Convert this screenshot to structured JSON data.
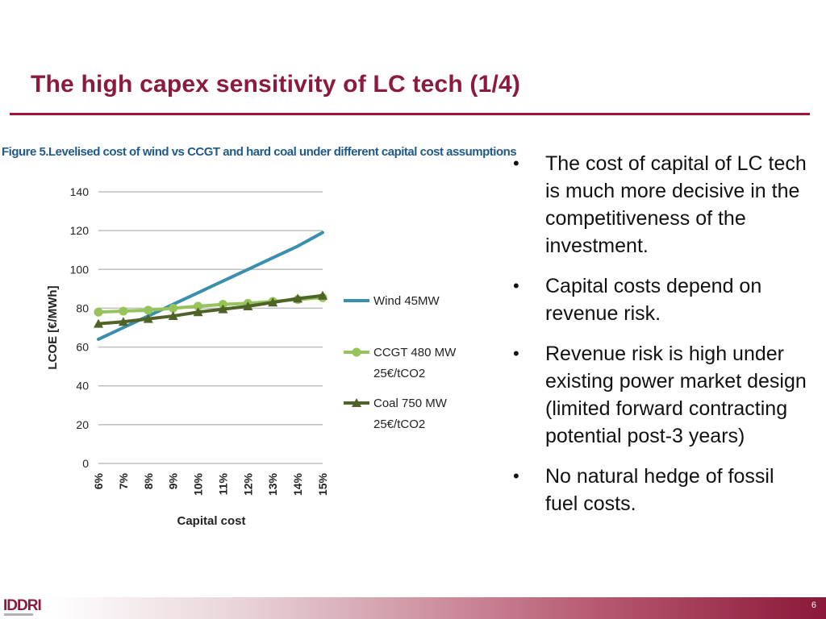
{
  "slide": {
    "title": "The high capex sensitivity of LC tech (1/4)",
    "page_number": "6",
    "logo_text": "IDDRI"
  },
  "figure": {
    "caption": "Figure 5.Levelised cost of wind vs CCGT and hard coal under different capital cost assumptions"
  },
  "bullets": [
    "The cost of capital of LC tech is much more decisive in the competitiveness of the investment.",
    "Capital costs depend on revenue risk.",
    "Revenue risk is high under existing power market design (limited forward contracting potential post-3 years)",
    "No natural hedge of fossil fuel costs."
  ],
  "colors": {
    "title": "#8b1a3c",
    "rule": "#a3123a",
    "caption": "#1f5a8a",
    "wind": "#3a8fb0",
    "ccgt": "#96c35a",
    "coal": "#4f6228",
    "grid": "#bfbfbf"
  },
  "chart_data": {
    "type": "line",
    "title": "",
    "xlabel": "Capital cost",
    "ylabel": "LCOE [€/MWh]",
    "ylim": [
      0,
      140
    ],
    "yticks": [
      "0",
      "20",
      "40",
      "60",
      "80",
      "100",
      "120",
      "140"
    ],
    "categories": [
      "6%",
      "7%",
      "8%",
      "9%",
      "10%",
      "11%",
      "12%",
      "13%",
      "14%",
      "15%"
    ],
    "grid": true,
    "legend_position": "right",
    "series": [
      {
        "name": "Wind 45MW",
        "marker": "none",
        "color": "#3a8fb0",
        "values": [
          64,
          70,
          76,
          82,
          88,
          94,
          100,
          106,
          112,
          119
        ]
      },
      {
        "name": "CCGT 480 MW 25€/tCO2",
        "name_lines": [
          "CCGT 480 MW",
          "25€/tCO2"
        ],
        "marker": "circle",
        "color": "#96c35a",
        "values": [
          78,
          78.5,
          79,
          80,
          81,
          82,
          82.5,
          83.5,
          84.5,
          85.5
        ]
      },
      {
        "name": "Coal 750 MW 25€/tCO2",
        "name_lines": [
          "Coal 750 MW",
          "25€/tCO2"
        ],
        "marker": "triangle",
        "color": "#4f6228",
        "values": [
          72,
          73,
          74.5,
          76,
          78,
          79.5,
          81,
          83,
          85,
          86.5
        ]
      }
    ]
  }
}
